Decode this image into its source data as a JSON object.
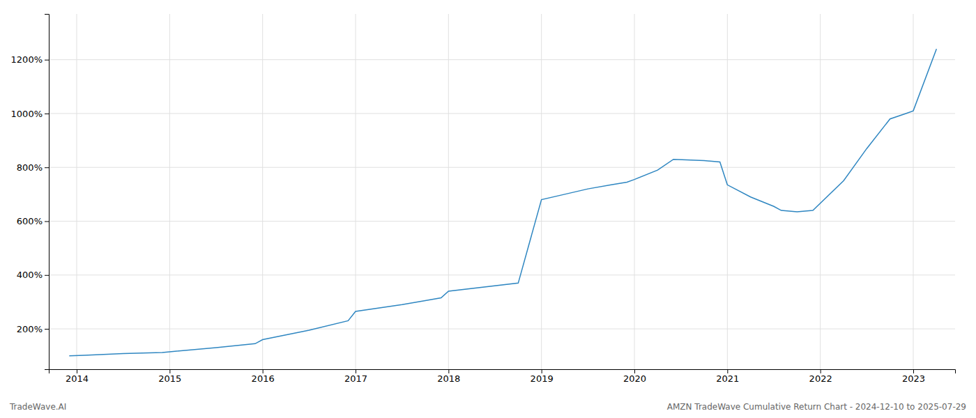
{
  "chart_data": {
    "type": "line",
    "x": [
      2013.92,
      2014.08,
      2014.5,
      2014.92,
      2015.0,
      2015.5,
      2015.92,
      2016.0,
      2016.5,
      2016.92,
      2017.0,
      2017.5,
      2017.75,
      2017.92,
      2018.0,
      2018.75,
      2019.0,
      2019.25,
      2019.5,
      2019.75,
      2019.92,
      2020.0,
      2020.25,
      2020.42,
      2020.75,
      2020.92,
      2021.0,
      2021.25,
      2021.5,
      2021.58,
      2021.75,
      2021.92,
      2022.25,
      2022.5,
      2022.75,
      2022.92,
      2023.0,
      2023.25
    ],
    "values": [
      100,
      102,
      108,
      112,
      115,
      130,
      145,
      160,
      195,
      230,
      265,
      290,
      305,
      315,
      340,
      370,
      680,
      700,
      720,
      735,
      745,
      755,
      790,
      830,
      825,
      820,
      735,
      690,
      655,
      640,
      635,
      640,
      750,
      870,
      980,
      1000,
      1010,
      1240
    ],
    "color": "#2e86c1",
    "xlim": [
      2013.7,
      2023.45
    ],
    "ylim": [
      50,
      1370
    ],
    "xticks": [
      2014,
      2015,
      2016,
      2017,
      2018,
      2019,
      2020,
      2021,
      2022,
      2023
    ],
    "yticks": [
      {
        "value": 200,
        "label": "200%"
      },
      {
        "value": 400,
        "label": "400%"
      },
      {
        "value": 600,
        "label": "600%"
      },
      {
        "value": 800,
        "label": "800%"
      },
      {
        "value": 1000,
        "label": "1000%"
      },
      {
        "value": 1200,
        "label": "1200%"
      }
    ],
    "grid": true,
    "annotations": [
      "TradeWave.AI",
      "AMZN TradeWave Cumulative Return Chart - 2024-12-10 to 2025-07-29"
    ]
  }
}
